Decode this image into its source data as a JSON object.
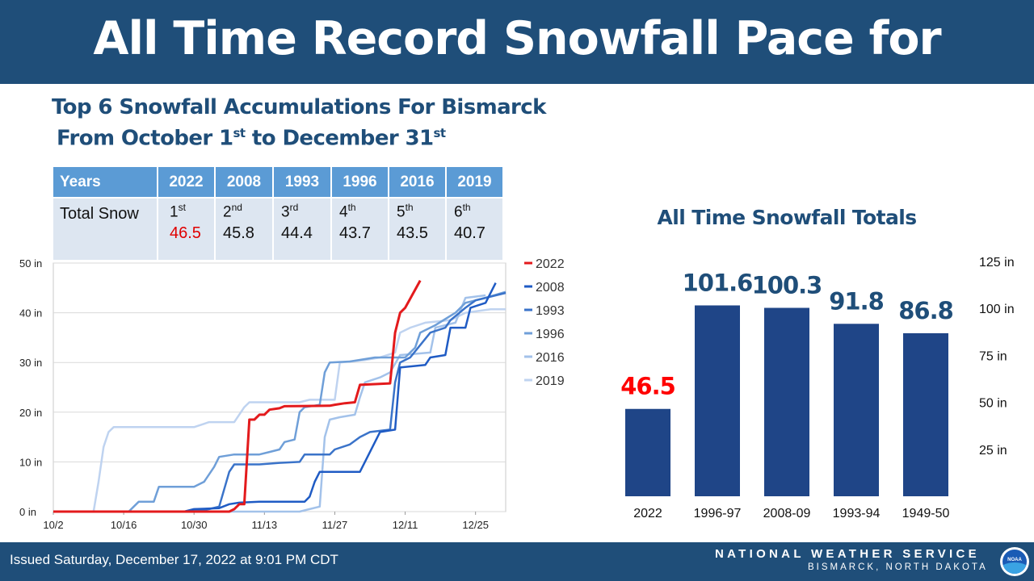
{
  "header": {
    "title": "All Time Record Snowfall Pace for Bismarck"
  },
  "subtitle": {
    "line1": "Top 6 Snowfall Accumulations For Bismarck",
    "line2_pre": "From October 1",
    "line2_sup1": "st",
    "line2_mid": " to December 31",
    "line2_sup2": "st"
  },
  "ranking_table": {
    "header_label": "Years",
    "row_label": "Total Snow",
    "columns": [
      {
        "year": "2022",
        "rank": "1",
        "suffix": "st",
        "total": "46.5",
        "color": "#e00000"
      },
      {
        "year": "2008",
        "rank": "2",
        "suffix": "nd",
        "total": "45.8",
        "color": "#111111"
      },
      {
        "year": "1993",
        "rank": "3",
        "suffix": "rd",
        "total": "44.4",
        "color": "#111111"
      },
      {
        "year": "1996",
        "rank": "4",
        "suffix": "th",
        "total": "43.7",
        "color": "#111111"
      },
      {
        "year": "2016",
        "rank": "5",
        "suffix": "th",
        "total": "43.5",
        "color": "#111111"
      },
      {
        "year": "2019",
        "rank": "6",
        "suffix": "th",
        "total": "40.7",
        "color": "#111111"
      }
    ]
  },
  "chart_data": [
    {
      "type": "line",
      "title": "",
      "xlabel": "",
      "ylabel": "",
      "x_type": "date",
      "xlim": [
        "10-02",
        "12-31"
      ],
      "ylim": [
        0,
        50
      ],
      "y_ticks": [
        "0 in",
        "10 in",
        "20 in",
        "30 in",
        "40 in",
        "50 in"
      ],
      "y_tick_values": [
        0,
        10,
        20,
        30,
        40,
        50
      ],
      "x_ticks": [
        "10/2",
        "10/16",
        "10/30",
        "11/13",
        "11/27",
        "12/11",
        "12/25"
      ],
      "x_tick_dates": [
        "10-02",
        "10-16",
        "10-30",
        "11-13",
        "11-27",
        "12-11",
        "12-25"
      ],
      "grid": true,
      "legend_position": "right",
      "series": [
        {
          "name": "2022",
          "color": "#e31a1c",
          "width": 3,
          "points": [
            [
              "10-02",
              0
            ],
            [
              "11-06",
              0
            ],
            [
              "11-07",
              0.5
            ],
            [
              "11-08",
              1.5
            ],
            [
              "11-09",
              1.5
            ],
            [
              "11-10",
              18.5
            ],
            [
              "11-11",
              18.5
            ],
            [
              "11-12",
              19.5
            ],
            [
              "11-13",
              19.5
            ],
            [
              "11-14",
              20.5
            ],
            [
              "11-16",
              20.8
            ],
            [
              "11-17",
              21.2
            ],
            [
              "11-26",
              21.3
            ],
            [
              "11-27",
              21.5
            ],
            [
              "11-29",
              21.8
            ],
            [
              "12-01",
              22
            ],
            [
              "12-02",
              25.5
            ],
            [
              "12-08",
              25.8
            ],
            [
              "12-09",
              36
            ],
            [
              "12-10",
              40
            ],
            [
              "12-11",
              41
            ],
            [
              "12-14",
              46.5
            ]
          ]
        },
        {
          "name": "2008",
          "color": "#1f5bc4",
          "width": 2.5,
          "points": [
            [
              "10-02",
              0
            ],
            [
              "10-28",
              0
            ],
            [
              "10-30",
              0.5
            ],
            [
              "11-04",
              0.7
            ],
            [
              "11-06",
              1.5
            ],
            [
              "11-08",
              1.8
            ],
            [
              "11-12",
              2
            ],
            [
              "11-21",
              2
            ],
            [
              "11-22",
              3
            ],
            [
              "11-23",
              6
            ],
            [
              "11-24",
              8
            ],
            [
              "12-02",
              8
            ],
            [
              "12-06",
              16
            ],
            [
              "12-09",
              16.5
            ],
            [
              "12-10",
              29
            ],
            [
              "12-15",
              29.5
            ],
            [
              "12-16",
              31
            ],
            [
              "12-19",
              31.5
            ],
            [
              "12-20",
              37
            ],
            [
              "12-23",
              37
            ],
            [
              "12-24",
              41
            ],
            [
              "12-27",
              42
            ],
            [
              "12-29",
              46
            ]
          ]
        },
        {
          "name": "1993",
          "color": "#3a73c9",
          "width": 2.5,
          "points": [
            [
              "10-02",
              0
            ],
            [
              "10-29",
              0
            ],
            [
              "11-02",
              0.5
            ],
            [
              "11-04",
              1
            ],
            [
              "11-06",
              8
            ],
            [
              "11-07",
              9.5
            ],
            [
              "11-10",
              9.5
            ],
            [
              "11-12",
              9.5
            ],
            [
              "11-16",
              9.8
            ],
            [
              "11-20",
              10
            ],
            [
              "11-21",
              11.5
            ],
            [
              "11-26",
              11.5
            ],
            [
              "11-27",
              12.5
            ],
            [
              "11-30",
              13.5
            ],
            [
              "12-02",
              15
            ],
            [
              "12-04",
              16
            ],
            [
              "12-08",
              16.5
            ],
            [
              "12-09",
              26
            ],
            [
              "12-10",
              30
            ],
            [
              "12-12",
              31
            ],
            [
              "12-16",
              36
            ],
            [
              "12-19",
              37
            ],
            [
              "12-20",
              38.5
            ],
            [
              "12-23",
              41
            ],
            [
              "12-25",
              42.5
            ],
            [
              "12-31",
              44
            ]
          ]
        },
        {
          "name": "1996",
          "color": "#6f9fd8",
          "width": 2.5,
          "points": [
            [
              "10-02",
              0
            ],
            [
              "10-17",
              0
            ],
            [
              "10-19",
              2
            ],
            [
              "10-22",
              2
            ],
            [
              "10-23",
              5
            ],
            [
              "10-30",
              5
            ],
            [
              "11-01",
              6
            ],
            [
              "11-03",
              9
            ],
            [
              "11-04",
              11
            ],
            [
              "11-07",
              11.5
            ],
            [
              "11-12",
              11.5
            ],
            [
              "11-14",
              12
            ],
            [
              "11-16",
              12.5
            ],
            [
              "11-17",
              14
            ],
            [
              "11-19",
              14.5
            ],
            [
              "11-20",
              20
            ],
            [
              "11-21",
              21
            ],
            [
              "11-24",
              21.5
            ],
            [
              "11-25",
              28
            ],
            [
              "11-26",
              30
            ],
            [
              "11-30",
              30.2
            ],
            [
              "12-05",
              31
            ],
            [
              "12-11",
              31
            ],
            [
              "12-13",
              33
            ],
            [
              "12-14",
              36
            ],
            [
              "12-17",
              37.5
            ],
            [
              "12-21",
              40
            ],
            [
              "12-23",
              42
            ],
            [
              "12-27",
              43
            ],
            [
              "12-31",
              44.2
            ]
          ]
        },
        {
          "name": "2016",
          "color": "#a3c2ea",
          "width": 2.5,
          "points": [
            [
              "10-02",
              0
            ],
            [
              "11-20",
              0
            ],
            [
              "11-22",
              0.5
            ],
            [
              "11-24",
              1
            ],
            [
              "11-25",
              15
            ],
            [
              "11-26",
              18.5
            ],
            [
              "11-28",
              19
            ],
            [
              "12-01",
              19.5
            ],
            [
              "12-02",
              23
            ],
            [
              "12-03",
              26
            ],
            [
              "12-06",
              27
            ],
            [
              "12-08",
              28
            ],
            [
              "12-10",
              31.5
            ],
            [
              "12-16",
              32
            ],
            [
              "12-17",
              37
            ],
            [
              "12-21",
              38
            ],
            [
              "12-23",
              43
            ],
            [
              "12-27",
              43.5
            ]
          ]
        },
        {
          "name": "2019",
          "color": "#bfd3f0",
          "width": 2.5,
          "points": [
            [
              "10-02",
              0
            ],
            [
              "10-10",
              0
            ],
            [
              "10-11",
              6
            ],
            [
              "10-12",
              13
            ],
            [
              "10-13",
              16
            ],
            [
              "10-14",
              17
            ],
            [
              "10-30",
              17
            ],
            [
              "11-02",
              18
            ],
            [
              "11-07",
              18
            ],
            [
              "11-09",
              21
            ],
            [
              "11-10",
              22
            ],
            [
              "11-20",
              22
            ],
            [
              "11-22",
              22.5
            ],
            [
              "11-27",
              22.5
            ],
            [
              "11-28",
              30
            ],
            [
              "12-03",
              30.5
            ],
            [
              "12-06",
              31
            ],
            [
              "12-09",
              32
            ],
            [
              "12-10",
              36
            ],
            [
              "12-12",
              37
            ],
            [
              "12-15",
              38
            ],
            [
              "12-20",
              38.5
            ],
            [
              "12-23",
              40
            ],
            [
              "12-28",
              40.7
            ],
            [
              "12-31",
              40.7
            ]
          ]
        }
      ]
    },
    {
      "type": "bar",
      "title": "All Time Snowfall Totals",
      "xlabel": "",
      "ylabel": "",
      "categories": [
        "2022",
        "1996-97",
        "2008-09",
        "1993-94",
        "1949-50"
      ],
      "values": [
        46.5,
        101.6,
        100.3,
        91.8,
        86.8
      ],
      "value_labels": [
        "46.5",
        "101.6",
        "100.3",
        "91.8",
        "86.8"
      ],
      "label_colors": [
        "#ff0000",
        "#1f4e79",
        "#1f4e79",
        "#1f4e79",
        "#1f4e79"
      ],
      "bar_color": "#1f4587",
      "ylim": [
        0,
        125
      ],
      "y_ticks": [
        "25 in",
        "50 in",
        "75 in",
        "100 in",
        "125 in"
      ],
      "y_tick_values": [
        25,
        50,
        75,
        100,
        125
      ],
      "y_axis_side": "right",
      "grid": false
    }
  ],
  "footer": {
    "issued": "Issued Saturday, December 17, 2022 at 9:01 PM CDT",
    "org": "NATIONAL WEATHER SERVICE",
    "office": "BISMARCK, NORTH DAKOTA",
    "logo_text": "NOAA"
  }
}
